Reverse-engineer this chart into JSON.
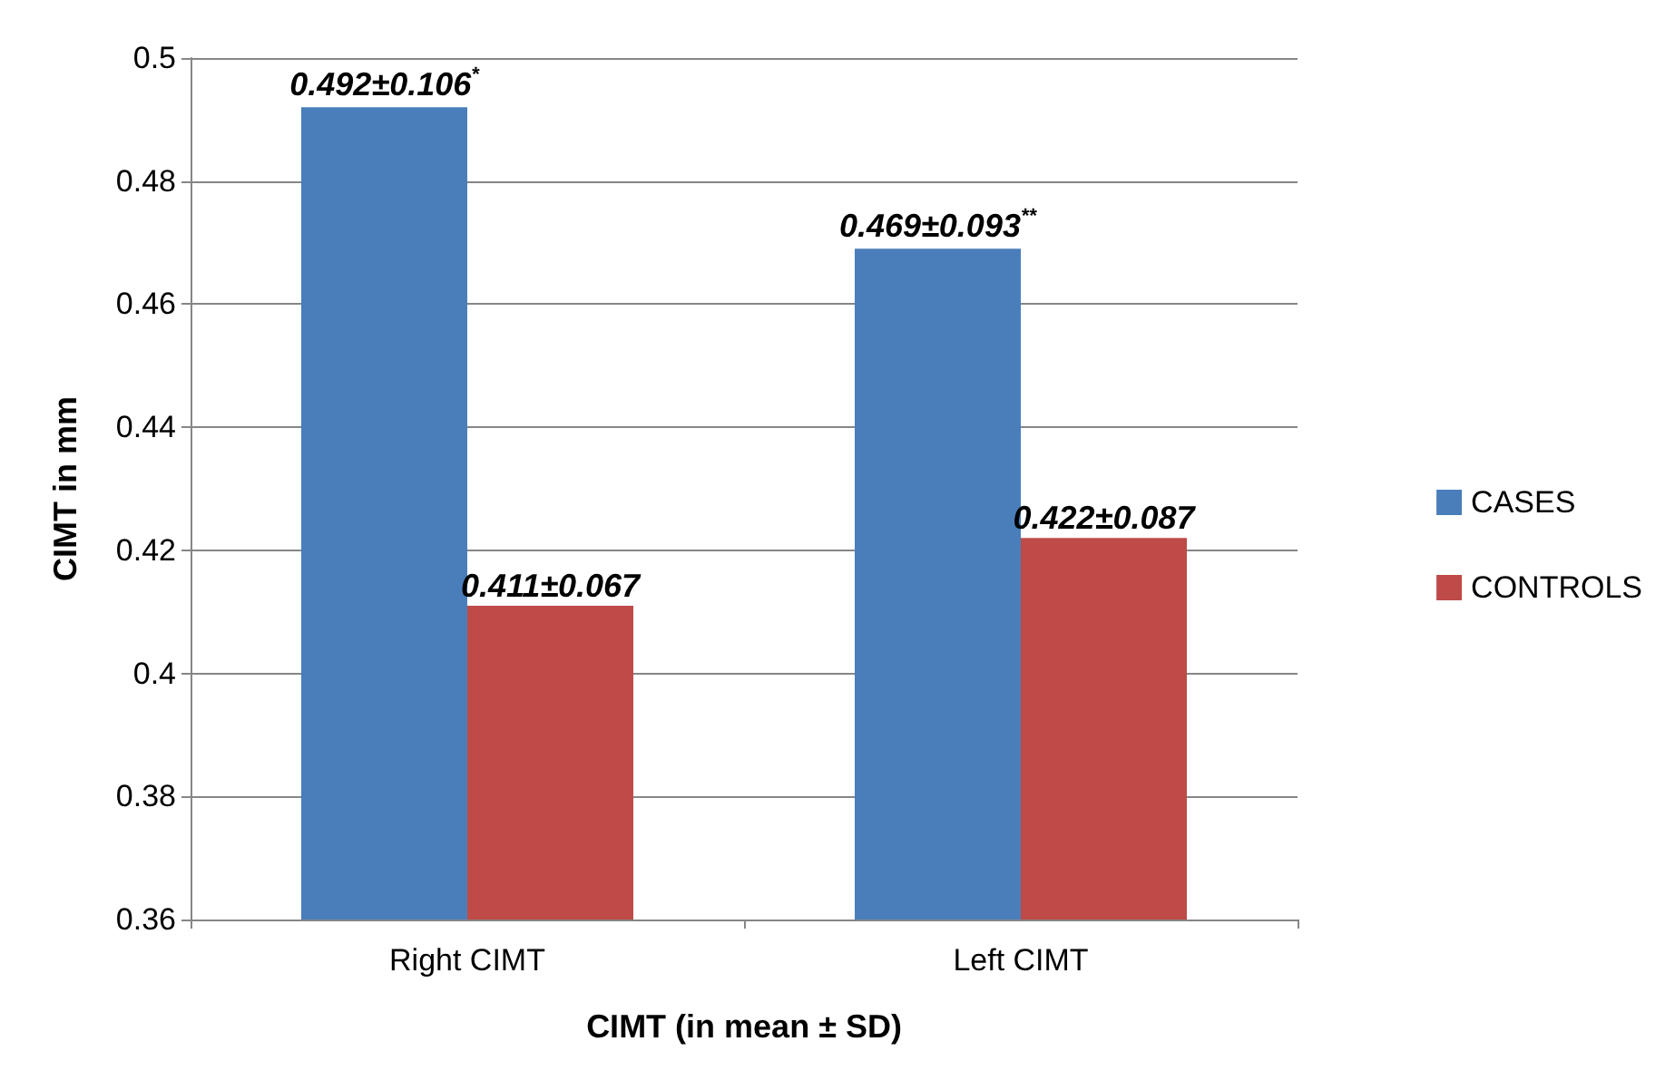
{
  "chart_data": {
    "type": "bar",
    "xlabel": "CIMT (in mean ± SD)",
    "ylabel": "CIMT in mm",
    "categories": [
      "Right CIMT",
      "Left CIMT"
    ],
    "series": [
      {
        "name": "CASES",
        "color": "#4a7ebb",
        "values": [
          0.492,
          0.469
        ],
        "value_labels": [
          "0.492±0.106$^{*}$",
          "0.469±0.093$^{**}$"
        ]
      },
      {
        "name": "CONTROLS",
        "color": "#be4b48",
        "values": [
          0.411,
          0.422
        ],
        "value_labels": [
          "0.411±0.067",
          "0.422±0.087"
        ]
      }
    ],
    "ylim": [
      0.36,
      0.5
    ],
    "yticks": [
      0.36,
      0.38,
      0.4,
      0.42,
      0.44,
      0.46,
      0.48,
      0.5
    ],
    "grid": "y",
    "legend": "right"
  }
}
